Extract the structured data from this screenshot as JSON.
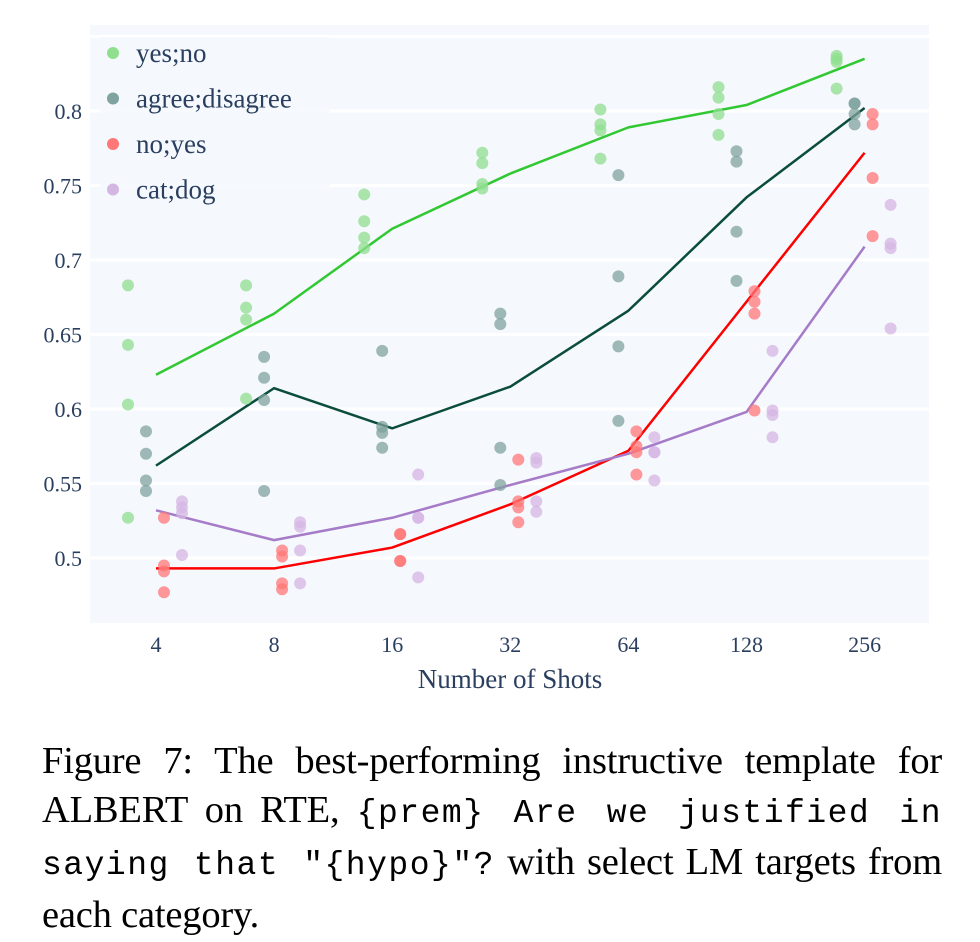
{
  "chart_data": {
    "type": "scatter",
    "title": "",
    "xlabel": "Number of Shots",
    "ylabel": "",
    "x_scale": "categorical-log2",
    "categories": [
      "4",
      "8",
      "16",
      "32",
      "64",
      "128",
      "256"
    ],
    "yticks": [
      0.5,
      0.55,
      0.6,
      0.65,
      0.7,
      0.75,
      0.8
    ],
    "ytick_labels": [
      "0.5",
      "0.55",
      "0.6",
      "0.65",
      "0.7",
      "0.75",
      "0.8"
    ],
    "ylim": [
      0.455,
      0.858
    ],
    "grid": true,
    "legend_position": "top-left",
    "series": [
      {
        "name": "yes;no",
        "marker_color": "#8fdf8f",
        "line_color": "#32c832",
        "points": [
          [
            0.683,
            0.643,
            0.603,
            0.527
          ],
          [
            0.683,
            0.668,
            0.66,
            0.607
          ],
          [
            0.744,
            0.726,
            0.715,
            0.708
          ],
          [
            0.772,
            0.765,
            0.751,
            0.748
          ],
          [
            0.801,
            0.791,
            0.787,
            0.768
          ],
          [
            0.816,
            0.809,
            0.798,
            0.784
          ],
          [
            0.837,
            0.835,
            0.833,
            0.815
          ]
        ],
        "line": [
          0.623,
          0.664,
          0.721,
          0.758,
          0.789,
          0.804,
          0.835
        ]
      },
      {
        "name": "agree;disagree",
        "marker_color": "#7fa39e",
        "line_color": "#0b4d3c",
        "points": [
          [
            0.585,
            0.57,
            0.552,
            0.545
          ],
          [
            0.635,
            0.621,
            0.606,
            0.545
          ],
          [
            0.639,
            0.588,
            0.584,
            0.574
          ],
          [
            0.664,
            0.657,
            0.574,
            0.549
          ],
          [
            0.757,
            0.689,
            0.642,
            0.592
          ],
          [
            0.773,
            0.766,
            0.719,
            0.686
          ],
          [
            0.805,
            0.805,
            0.798,
            0.791
          ]
        ],
        "line": [
          0.562,
          0.614,
          0.587,
          0.615,
          0.666,
          0.742,
          0.802
        ]
      },
      {
        "name": "no;yes",
        "marker_color": "#ff7777",
        "line_color": "#ff0000",
        "points": [
          [
            0.527,
            0.495,
            0.491,
            0.477
          ],
          [
            0.505,
            0.501,
            0.483,
            0.479
          ],
          [
            0.516,
            0.516,
            0.498,
            0.498
          ],
          [
            0.566,
            0.538,
            0.534,
            0.524
          ],
          [
            0.585,
            0.575,
            0.571,
            0.556
          ],
          [
            0.679,
            0.672,
            0.664,
            0.599
          ],
          [
            0.798,
            0.791,
            0.755,
            0.716
          ]
        ],
        "line": [
          0.493,
          0.493,
          0.507,
          0.536,
          0.572,
          0.672,
          0.772
        ]
      },
      {
        "name": "cat;dog",
        "marker_color": "#d4b6e3",
        "line_color": "#a67bc8",
        "points": [
          [
            0.538,
            0.534,
            0.53,
            0.502
          ],
          [
            0.524,
            0.521,
            0.505,
            0.483
          ],
          [
            0.556,
            0.527,
            0.527,
            0.487
          ],
          [
            0.567,
            0.564,
            0.538,
            0.531
          ],
          [
            0.581,
            0.571,
            0.571,
            0.552
          ],
          [
            0.639,
            0.599,
            0.596,
            0.581
          ],
          [
            0.737,
            0.711,
            0.708,
            0.654
          ]
        ],
        "line": [
          0.532,
          0.512,
          0.527,
          0.549,
          0.57,
          0.598,
          0.709
        ]
      }
    ]
  },
  "caption": {
    "prefix": "Figure 7: The best-performing instructive template for ALBERT on RTE, ",
    "template_code": "{prem} Are we justified in saying that \"{hypo}\"?",
    "suffix": " with select LM targets from each category."
  },
  "colors": {
    "plot_background": "#f5f8fd",
    "gridline": "#ffffff",
    "text": "#2a3f5f"
  }
}
